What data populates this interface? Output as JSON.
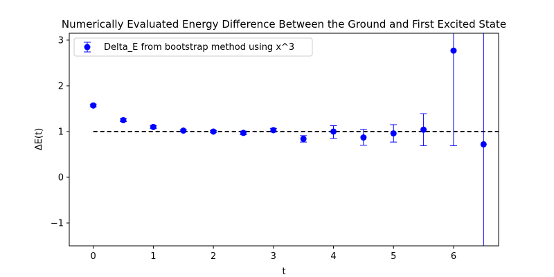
{
  "chart_data": {
    "type": "scatter",
    "title": "Numerically Evaluated Energy Difference Between the Ground and First Excited State",
    "xlabel": "t",
    "ylabel": "ΔE(t)",
    "xlim": [
      -0.4,
      6.75
    ],
    "ylim": [
      -1.5,
      3.15
    ],
    "xticks": [
      0,
      1,
      2,
      3,
      4,
      5,
      6
    ],
    "yticks": [
      -1,
      0,
      1,
      2,
      3
    ],
    "ytick_labels": [
      "−1",
      "0",
      "1",
      "2",
      "3"
    ],
    "grid": false,
    "legend_position": "upper-left",
    "series": [
      {
        "name": "Delta_E from bootstrap method using x^3",
        "color": "#0000ff",
        "marker": "circle",
        "errorbars": true,
        "x": [
          0.0,
          0.5,
          1.0,
          1.5,
          2.0,
          2.5,
          3.0,
          3.5,
          4.0,
          4.5,
          5.0,
          5.5,
          6.0,
          6.5
        ],
        "y": [
          1.57,
          1.25,
          1.1,
          1.02,
          1.0,
          0.97,
          1.03,
          0.84,
          1.0,
          0.87,
          0.96,
          1.04,
          2.77,
          0.72
        ],
        "yerr_low": [
          0.03,
          0.03,
          0.03,
          0.02,
          0.02,
          0.04,
          0.04,
          0.07,
          0.15,
          0.17,
          0.19,
          0.35,
          2.08,
          3.0
        ],
        "yerr_high": [
          0.03,
          0.03,
          0.03,
          0.02,
          0.02,
          0.04,
          0.04,
          0.07,
          0.13,
          0.18,
          0.19,
          0.35,
          2.5,
          3.0
        ]
      }
    ],
    "reference_line": {
      "y": 1.0,
      "x_range": [
        0.0,
        6.75
      ],
      "style": "dashed",
      "color": "#000000"
    }
  }
}
